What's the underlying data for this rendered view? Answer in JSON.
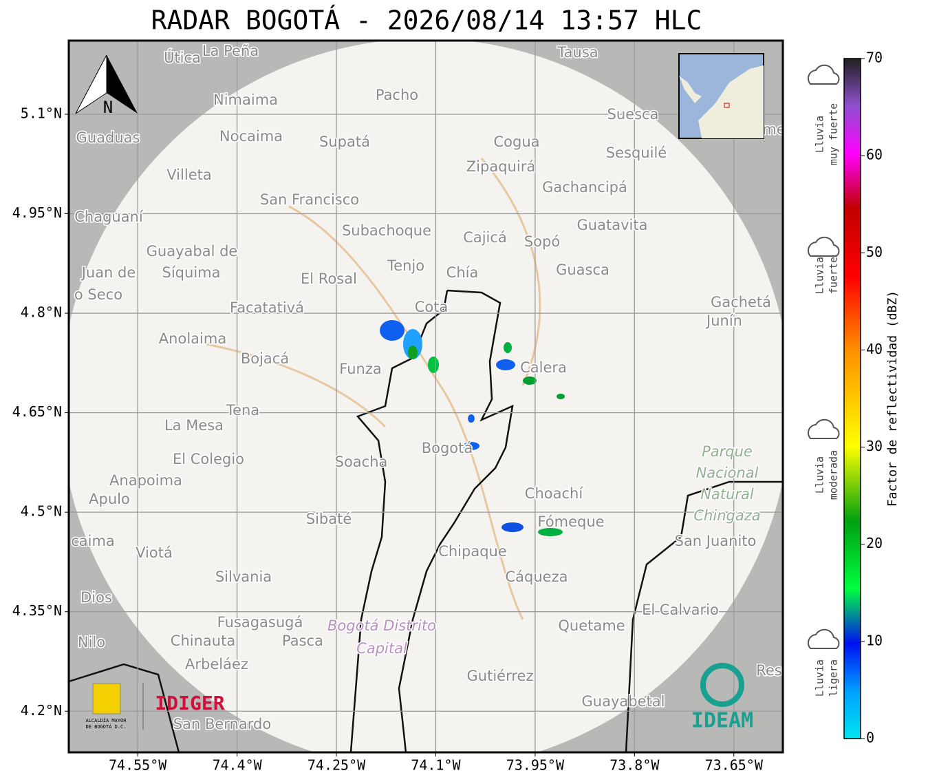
{
  "map": {
    "title": "RADAR BOGOTÁ - 2026/08/14 13:57 HLC",
    "xlim": [
      -74.654,
      -73.576
    ],
    "ylim": [
      4.138,
      5.211
    ],
    "xticks": [
      {
        "value": -74.55,
        "label": "74.55°W"
      },
      {
        "value": -74.4,
        "label": "74.4°W"
      },
      {
        "value": -74.25,
        "label": "74.25°W"
      },
      {
        "value": -74.1,
        "label": "74.1°W"
      },
      {
        "value": -73.95,
        "label": "73.95°W"
      },
      {
        "value": -73.8,
        "label": "73.8°W"
      },
      {
        "value": -73.65,
        "label": "73.65°W"
      }
    ],
    "yticks": [
      {
        "value": 5.1,
        "label": "5.1°N"
      },
      {
        "value": 4.95,
        "label": "4.95°N"
      },
      {
        "value": 4.8,
        "label": "4.8°N"
      },
      {
        "value": 4.65,
        "label": "4.65°N"
      },
      {
        "value": 4.5,
        "label": "4.5°N"
      },
      {
        "value": 4.35,
        "label": "4.35°N"
      },
      {
        "value": 4.2,
        "label": "4.2°N"
      }
    ],
    "grid": true,
    "north": "N",
    "places": [
      "Útica",
      "La Peña",
      "Tausa",
      "Pacho",
      "Nimaima",
      "Guaduas",
      "Nocaima",
      "Supatá",
      "Cogua",
      "Suesca",
      "Sesquilé",
      "Zipaquirá",
      "Villeta",
      "Gachancipá",
      "San Francisco",
      "Chaguaní",
      "Guatavita",
      "Subachoque",
      "Cajicá",
      "Sopó",
      "Guayabal de",
      "Síquima",
      "Juan de",
      "o Seco",
      "Tenjo",
      "Chía",
      "Guasca",
      "El Rosal",
      "Gachetá",
      "Junín",
      "Facatativá",
      "Cota",
      "Anolaima",
      "Bojacá",
      "Funza",
      "Calera",
      "Tena",
      "La Mesa",
      "El Colegio",
      "Soacha",
      "Bogotá",
      "Anapoima",
      "Apulo",
      "Choachí",
      "Sibaté",
      "Fómeque",
      "San Juanito",
      "caima",
      "Viotá",
      "Chipaque",
      "Silvania",
      "Cáqueza",
      "Dios",
      "El Calvario",
      "Fusagasugá",
      "Quetame",
      "Nilo",
      "Chinauta",
      "Pasca",
      "Arbeláez",
      "Gutiérrez",
      "Guayabetal",
      "San Bernardo",
      "Res",
      "me"
    ],
    "park": [
      "Parque",
      "Nacional",
      "Natural",
      "Chingaza"
    ],
    "district": [
      "Bogotá Distrito",
      "Capital"
    ],
    "logos": {
      "alcaldia": [
        "ALCALDÍA MAYOR",
        "DE BOGOTÁ D.C."
      ],
      "idiger": "IDIGER",
      "ideam": "IDEAM"
    },
    "colorbar": {
      "label": "Factor de reflectividad (dBZ)",
      "lim": [
        0,
        70
      ],
      "ticks": [
        0,
        10,
        20,
        30,
        40,
        50,
        60,
        70
      ]
    },
    "rain_levels": [
      [
        "Lluvia",
        "muy fuerte"
      ],
      [
        "Lluvia",
        "fuerte"
      ],
      [
        "Lluvia",
        "moderada"
      ],
      [
        "Lluvia",
        "ligera"
      ]
    ]
  }
}
